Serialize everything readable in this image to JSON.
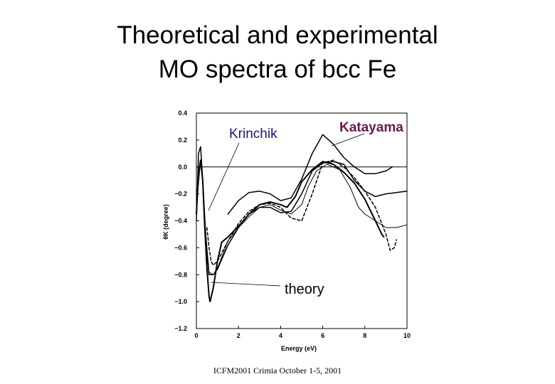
{
  "slide": {
    "title_line1": "Theoretical and experimental",
    "title_line2": "MO spectra of bcc Fe",
    "footer": "ICFM2001 Crimia October 1-5, 2001"
  },
  "chart_data": {
    "type": "line",
    "xlabel": "Energy (eV)",
    "ylabel": "θK (degree)",
    "xlim": [
      0,
      10
    ],
    "ylim": [
      -1.2,
      0.4
    ],
    "x_ticks": [
      "0",
      "2",
      "4",
      "6",
      "8",
      "10"
    ],
    "y_ticks": [
      "0.4",
      "0.2",
      "0.0",
      "-0.2",
      "-0.4",
      "-0.6",
      "-0.8",
      "-1.0",
      "-1.2"
    ],
    "zero_line": true,
    "annotations": [
      {
        "text": "Krinchik",
        "color": "#1a1a6e"
      },
      {
        "text": "Katayama",
        "color": "#6b1a4a"
      },
      {
        "text": "theory",
        "color": "#000000"
      }
    ],
    "series": [
      {
        "id": "katayama-upper",
        "style": "solid",
        "width": 1.5,
        "points": [
          [
            1.5,
            -0.35
          ],
          [
            2,
            -0.25
          ],
          [
            2.5,
            -0.19
          ],
          [
            3,
            -0.18
          ],
          [
            3.5,
            -0.2
          ],
          [
            4,
            -0.25
          ],
          [
            4.5,
            -0.23
          ],
          [
            5,
            -0.09
          ],
          [
            5.5,
            0.1
          ],
          [
            6,
            0.24
          ],
          [
            6.5,
            0.17
          ],
          [
            7,
            0.07
          ],
          [
            7.5,
            0.0
          ],
          [
            8,
            -0.05
          ],
          [
            8.5,
            -0.05
          ],
          [
            9,
            -0.03
          ],
          [
            9.3,
            0.0
          ]
        ]
      },
      {
        "id": "theory-main",
        "style": "solid",
        "width": 2,
        "points": [
          [
            0,
            -0.35
          ],
          [
            0.1,
            -0.05
          ],
          [
            0.2,
            0.05
          ],
          [
            0.3,
            -0.1
          ],
          [
            0.4,
            -0.45
          ],
          [
            0.5,
            -0.75
          ],
          [
            0.6,
            -0.96
          ],
          [
            0.65,
            -1.0
          ],
          [
            0.8,
            -0.9
          ],
          [
            1,
            -0.7
          ],
          [
            1.2,
            -0.56
          ],
          [
            1.5,
            -0.52
          ],
          [
            2,
            -0.44
          ],
          [
            2.5,
            -0.35
          ],
          [
            3,
            -0.28
          ],
          [
            3.5,
            -0.26
          ],
          [
            4,
            -0.28
          ],
          [
            4.3,
            -0.3
          ],
          [
            4.7,
            -0.22
          ],
          [
            5,
            -0.11
          ],
          [
            5.5,
            -0.02
          ],
          [
            6,
            0.04
          ],
          [
            6.5,
            0.02
          ],
          [
            7,
            -0.04
          ],
          [
            7.5,
            -0.12
          ],
          [
            8,
            -0.24
          ],
          [
            8.5,
            -0.4
          ],
          [
            8.8,
            -0.5
          ],
          [
            8.9,
            -0.52
          ]
        ]
      },
      {
        "id": "theory-second",
        "style": "solid",
        "width": 1,
        "points": [
          [
            0,
            -0.3
          ],
          [
            0.2,
            0.05
          ],
          [
            0.3,
            -0.1
          ],
          [
            0.45,
            -0.5
          ],
          [
            0.6,
            -0.78
          ],
          [
            0.8,
            -0.8
          ],
          [
            1,
            -0.75
          ],
          [
            1.5,
            -0.55
          ],
          [
            2,
            -0.45
          ],
          [
            2.5,
            -0.37
          ],
          [
            3,
            -0.3
          ],
          [
            3.5,
            -0.28
          ],
          [
            4,
            -0.32
          ],
          [
            4.5,
            -0.35
          ],
          [
            5,
            -0.28
          ],
          [
            5.3,
            -0.15
          ],
          [
            5.7,
            -0.03
          ],
          [
            6.2,
            0.02
          ],
          [
            6.8,
            -0.02
          ],
          [
            7.3,
            -0.15
          ],
          [
            7.7,
            -0.3
          ],
          [
            8,
            -0.35
          ],
          [
            8.5,
            -0.4
          ],
          [
            9,
            -0.45
          ],
          [
            9.5,
            -0.45
          ],
          [
            10,
            -0.43
          ]
        ]
      },
      {
        "id": "katayama-lower",
        "style": "solid",
        "width": 1.5,
        "points": [
          [
            0,
            -0.4
          ],
          [
            0.1,
            0.1
          ],
          [
            0.2,
            0.15
          ],
          [
            0.3,
            -0.1
          ],
          [
            0.45,
            -0.55
          ],
          [
            0.6,
            -0.8
          ],
          [
            0.8,
            -0.8
          ],
          [
            1,
            -0.76
          ],
          [
            1.5,
            -0.58
          ],
          [
            2,
            -0.45
          ],
          [
            2.5,
            -0.35
          ],
          [
            3,
            -0.3
          ],
          [
            3.5,
            -0.3
          ],
          [
            4,
            -0.34
          ],
          [
            4.5,
            -0.33
          ],
          [
            5,
            -0.2
          ],
          [
            5.5,
            -0.03
          ],
          [
            6,
            0.03
          ],
          [
            6.5,
            0.04
          ],
          [
            7,
            0.02
          ],
          [
            7.5,
            -0.1
          ],
          [
            8,
            -0.18
          ],
          [
            8.5,
            -0.22
          ],
          [
            9,
            -0.2
          ],
          [
            9.5,
            -0.19
          ],
          [
            10,
            -0.18
          ]
        ]
      },
      {
        "id": "krinchik",
        "style": "dashed",
        "width": 1.5,
        "points": [
          [
            0.5,
            -0.45
          ],
          [
            0.6,
            -0.6
          ],
          [
            0.7,
            -0.7
          ],
          [
            0.8,
            -0.73
          ],
          [
            1,
            -0.7
          ],
          [
            1.5,
            -0.55
          ],
          [
            2,
            -0.42
          ],
          [
            2.5,
            -0.33
          ],
          [
            3,
            -0.28
          ],
          [
            3.5,
            -0.27
          ],
          [
            4,
            -0.3
          ],
          [
            4.5,
            -0.38
          ],
          [
            5,
            -0.4
          ],
          [
            5.5,
            -0.2
          ],
          [
            6,
            0.03
          ],
          [
            6.5,
            0.05
          ],
          [
            7,
            0.0
          ],
          [
            7.5,
            -0.08
          ],
          [
            8,
            -0.18
          ],
          [
            8.5,
            -0.3
          ],
          [
            9,
            -0.5
          ],
          [
            9.2,
            -0.62
          ],
          [
            9.4,
            -0.6
          ],
          [
            9.5,
            -0.54
          ]
        ]
      }
    ]
  }
}
